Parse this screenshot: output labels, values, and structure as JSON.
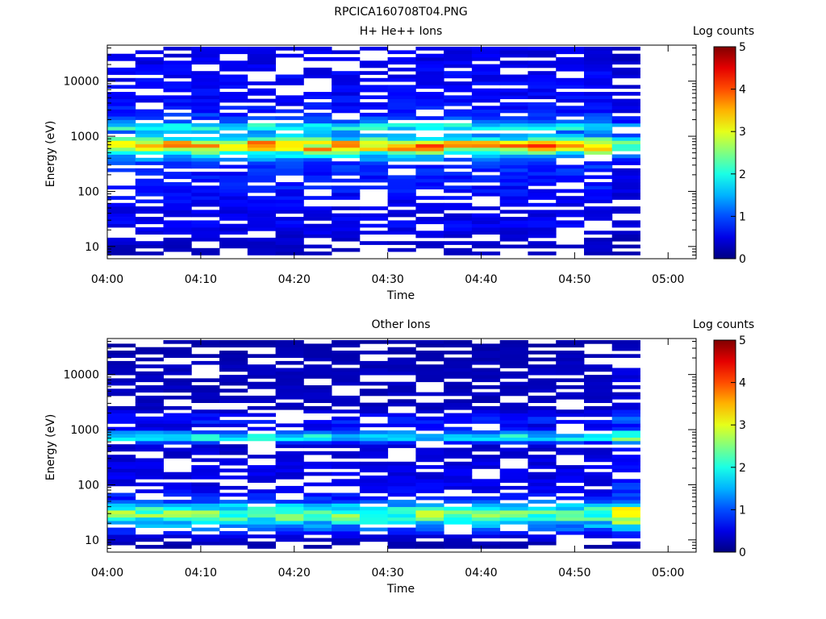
{
  "figure": {
    "title": "RPCICA160708T04.PNG"
  },
  "colors": {
    "axis": "#000000",
    "background": "#ffffff"
  },
  "chart_data": [
    {
      "type": "heatmap",
      "title": "H+ He++ Ions",
      "xlabel": "Time",
      "ylabel": "Energy (eV)",
      "x_ticks": [
        "04:00",
        "04:10",
        "04:20",
        "04:30",
        "04:40",
        "04:50",
        "05:00"
      ],
      "y_ticks": [
        "10",
        "100",
        "1000",
        "10000"
      ],
      "y_scale": "log",
      "ylim": [
        6,
        45000
      ],
      "xlim": [
        "04:00",
        "05:03"
      ],
      "colorbar": {
        "label": "Log counts",
        "ticks": [
          "0",
          "1",
          "2",
          "3",
          "4",
          "5"
        ],
        "range": [
          0,
          5
        ]
      },
      "time_bins": [
        "04:03",
        "04:06",
        "04:09",
        "04:12",
        "04:15",
        "04:18",
        "04:21",
        "04:24",
        "04:27",
        "04:30",
        "04:33",
        "04:36",
        "04:39",
        "04:42",
        "04:45",
        "04:48",
        "04:51",
        "04:54",
        "04:57"
      ],
      "profile": [
        {
          "e": 8,
          "v": 0.3
        },
        {
          "e": 15,
          "v": 0.4
        },
        {
          "e": 25,
          "v": 0.6
        },
        {
          "e": 40,
          "v": 0.5
        },
        {
          "e": 70,
          "v": 0.6
        },
        {
          "e": 120,
          "v": 0.7
        },
        {
          "e": 200,
          "v": 0.7
        },
        {
          "e": 320,
          "v": 0.9
        },
        {
          "e": 450,
          "v": 1.6
        },
        {
          "e": 600,
          "v": 3.3
        },
        {
          "e": 750,
          "v": 3.4
        },
        {
          "e": 900,
          "v": 2.0
        },
        {
          "e": 1150,
          "v": 1.1
        },
        {
          "e": 1500,
          "v": 2.2
        },
        {
          "e": 1900,
          "v": 1.0
        },
        {
          "e": 3000,
          "v": 0.7
        },
        {
          "e": 6000,
          "v": 0.6
        },
        {
          "e": 12000,
          "v": 0.6
        },
        {
          "e": 25000,
          "v": 0.5
        },
        {
          "e": 40000,
          "v": 0.5
        }
      ],
      "last_bin_scale": 0.7
    },
    {
      "type": "heatmap",
      "title": "Other Ions",
      "xlabel": "Time",
      "ylabel": "Energy (eV)",
      "x_ticks": [
        "04:00",
        "04:10",
        "04:20",
        "04:30",
        "04:40",
        "04:50",
        "05:00"
      ],
      "y_ticks": [
        "10",
        "100",
        "1000",
        "10000"
      ],
      "y_scale": "log",
      "ylim": [
        6,
        45000
      ],
      "xlim": [
        "04:00",
        "05:03"
      ],
      "colorbar": {
        "label": "Log counts",
        "ticks": [
          "0",
          "1",
          "2",
          "3",
          "4",
          "5"
        ],
        "range": [
          0,
          5
        ]
      },
      "time_bins": [
        "04:03",
        "04:06",
        "04:09",
        "04:12",
        "04:15",
        "04:18",
        "04:21",
        "04:24",
        "04:27",
        "04:30",
        "04:33",
        "04:36",
        "04:39",
        "04:42",
        "04:45",
        "04:48",
        "04:51",
        "04:54",
        "04:57"
      ],
      "profile": [
        {
          "e": 8,
          "v": 0.2
        },
        {
          "e": 12,
          "v": 0.5
        },
        {
          "e": 18,
          "v": 1.3
        },
        {
          "e": 25,
          "v": 2.2
        },
        {
          "e": 32,
          "v": 2.5
        },
        {
          "e": 40,
          "v": 1.6
        },
        {
          "e": 55,
          "v": 0.8
        },
        {
          "e": 80,
          "v": 0.6
        },
        {
          "e": 120,
          "v": 0.5
        },
        {
          "e": 200,
          "v": 0.5
        },
        {
          "e": 350,
          "v": 0.4
        },
        {
          "e": 550,
          "v": 0.4
        },
        {
          "e": 700,
          "v": 1.9
        },
        {
          "e": 800,
          "v": 1.7
        },
        {
          "e": 1100,
          "v": 0.4
        },
        {
          "e": 1500,
          "v": 0.8
        },
        {
          "e": 2500,
          "v": 0.3
        },
        {
          "e": 6000,
          "v": 0.3
        },
        {
          "e": 15000,
          "v": 0.3
        },
        {
          "e": 35000,
          "v": 0.2
        }
      ],
      "last_bin_scale": 1.4
    }
  ]
}
